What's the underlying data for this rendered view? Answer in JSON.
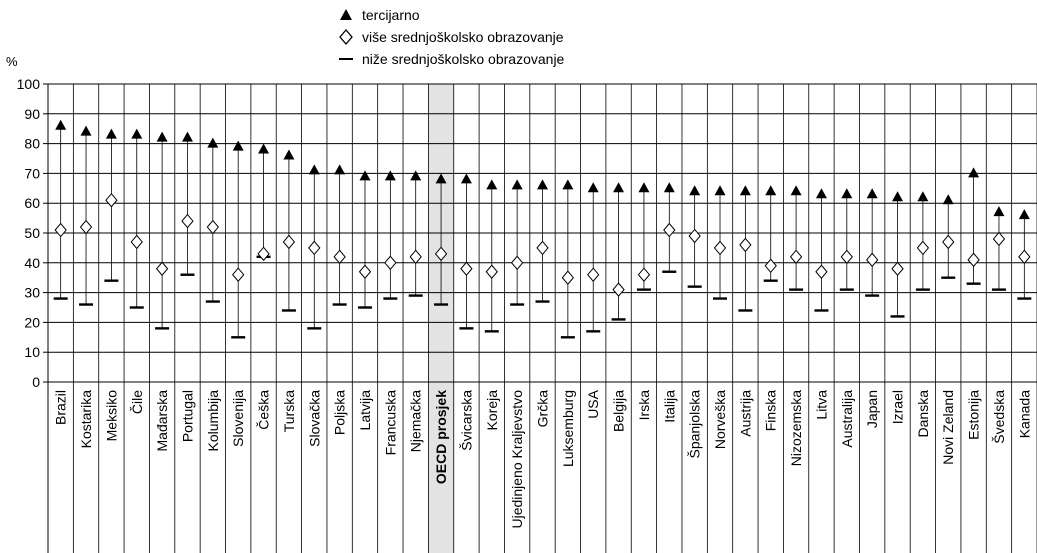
{
  "chart_data": {
    "type": "scatter",
    "unit_label": "%",
    "ylim": [
      0,
      100
    ],
    "y_ticks": [
      0,
      10,
      20,
      30,
      40,
      50,
      60,
      70,
      80,
      90,
      100
    ],
    "grid": true,
    "legend_position": "top-center",
    "highlight_category": "OECD prosjek",
    "highlight_color": "#e3e3e3",
    "categories": [
      "Brazil",
      "Kostarika",
      "Meksiko",
      "Čile",
      "Mađarska",
      "Portugal",
      "Kolumbija",
      "Slovenija",
      "Češka",
      "Turska",
      "Slovačka",
      "Poljska",
      "Latvija",
      "Francuska",
      "Njemačka",
      "OECD prosjek",
      "Švicarska",
      "Koreja",
      "Ujedinjeno Kraljevstvo",
      "Grčka",
      "Luksemburg",
      "USA",
      "Belgija",
      "Irska",
      "Italija",
      "Španjolska",
      "Norveška",
      "Austrija",
      "Finska",
      "Nizozemska",
      "Litva",
      "Australija",
      "Japan",
      "Izrael",
      "Danska",
      "Novi Zeland",
      "Estonija",
      "Švedska",
      "Kanada"
    ],
    "series": [
      {
        "name": "tercijarno",
        "marker": "triangle",
        "values": [
          86,
          84,
          83,
          83,
          82,
          82,
          80,
          79,
          78,
          76,
          71,
          71,
          69,
          69,
          69,
          68,
          68,
          66,
          66,
          66,
          66,
          65,
          65,
          65,
          65,
          64,
          64,
          64,
          64,
          64,
          63,
          63,
          63,
          62,
          62,
          61,
          70,
          57,
          56
        ]
      },
      {
        "name": "više srednjoškolsko obrazovanje",
        "marker": "diamond",
        "values": [
          51,
          52,
          61,
          47,
          38,
          54,
          52,
          36,
          43,
          47,
          45,
          42,
          37,
          40,
          42,
          43,
          38,
          37,
          40,
          45,
          35,
          36,
          31,
          36,
          51,
          49,
          45,
          46,
          39,
          42,
          37,
          42,
          41,
          38,
          45,
          47,
          41,
          48,
          42
        ]
      },
      {
        "name": "niže srednjoškolsko obrazovanje",
        "marker": "dash",
        "values": [
          28,
          26,
          34,
          25,
          18,
          36,
          27,
          15,
          42,
          24,
          18,
          26,
          25,
          28,
          29,
          26,
          18,
          17,
          26,
          27,
          15,
          17,
          21,
          31,
          37,
          32,
          28,
          24,
          34,
          31,
          24,
          31,
          29,
          22,
          31,
          35,
          33,
          31,
          28
        ]
      }
    ]
  }
}
